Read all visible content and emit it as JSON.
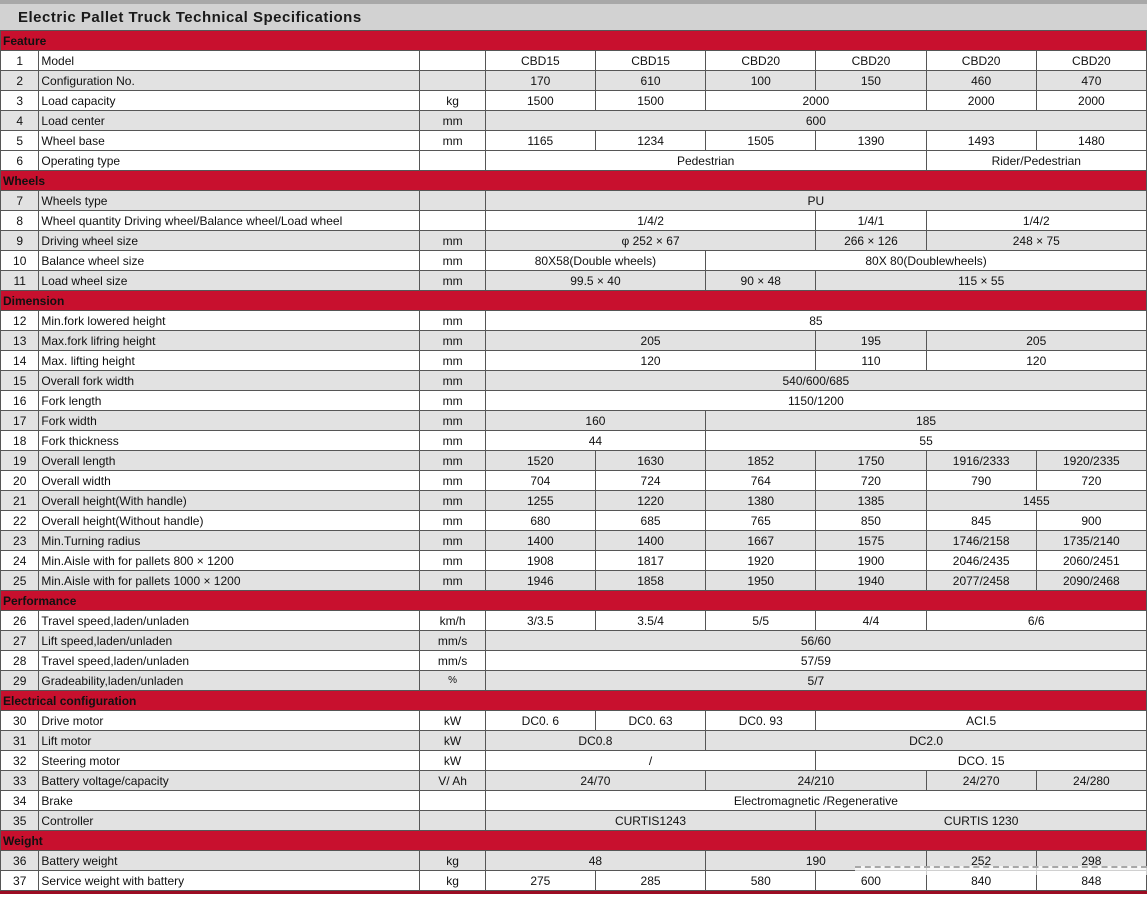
{
  "title": "Electric  Pallet Truck  Technical  Specifications",
  "colors": {
    "section_header_red": "#c8102e",
    "row_gray": "#e2e2e2",
    "row_white": "#ffffff",
    "title_bar_gray": "#d2d2d2",
    "grid_border": "#565656",
    "bottom_line_red": "#9c0c22"
  },
  "table": {
    "num_data_columns": 6,
    "sections": [
      {
        "header": "Feature",
        "rows": [
          {
            "num": "1",
            "label": "Model",
            "unit": "",
            "shade": "w",
            "cells": [
              {
                "t": "CBD15",
                "s": 1
              },
              {
                "t": "CBD15",
                "s": 1
              },
              {
                "t": "CBD20",
                "s": 1
              },
              {
                "t": "CBD20",
                "s": 1
              },
              {
                "t": "CBD20",
                "s": 1
              },
              {
                "t": "CBD20",
                "s": 1
              }
            ]
          },
          {
            "num": "2",
            "label": "Configuration No.",
            "unit": "",
            "shade": "g",
            "cells": [
              {
                "t": "170",
                "s": 1
              },
              {
                "t": "610",
                "s": 1
              },
              {
                "t": "100",
                "s": 1
              },
              {
                "t": "150",
                "s": 1
              },
              {
                "t": "460",
                "s": 1
              },
              {
                "t": "470",
                "s": 1
              }
            ]
          },
          {
            "num": "3",
            "label": "Load capacity",
            "unit": "kg",
            "shade": "w",
            "cells": [
              {
                "t": "1500",
                "s": 1
              },
              {
                "t": "1500",
                "s": 1
              },
              {
                "t": "2000",
                "s": 2
              },
              {
                "t": "2000",
                "s": 1
              },
              {
                "t": "2000",
                "s": 1
              }
            ]
          },
          {
            "num": "4",
            "label": "Load center",
            "unit": "mm",
            "shade": "g",
            "cells": [
              {
                "t": "600",
                "s": 6
              }
            ]
          },
          {
            "num": "5",
            "label": "Wheel base",
            "unit": "mm",
            "shade": "w",
            "cells": [
              {
                "t": "1165",
                "s": 1
              },
              {
                "t": "1234",
                "s": 1
              },
              {
                "t": "1505",
                "s": 1
              },
              {
                "t": "1390",
                "s": 1
              },
              {
                "t": "1493",
                "s": 1
              },
              {
                "t": "1480",
                "s": 1
              }
            ]
          },
          {
            "num": "6",
            "label": "Operating type",
            "unit": "",
            "shade": "w",
            "cells": [
              {
                "t": "Pedestrian",
                "s": 4
              },
              {
                "t": "Rider/Pedestrian",
                "s": 2
              }
            ]
          }
        ]
      },
      {
        "header": "Wheels",
        "rows": [
          {
            "num": "7",
            "label": "Wheels type",
            "unit": "",
            "shade": "g",
            "cells": [
              {
                "t": "PU",
                "s": 6
              }
            ]
          },
          {
            "num": "8",
            "label": "Wheel quantity Driving wheel/Balance wheel/Load wheel",
            "unit": "",
            "shade": "w",
            "cells": [
              {
                "t": "1/4/2",
                "s": 3
              },
              {
                "t": "1/4/1",
                "s": 1
              },
              {
                "t": "1/4/2",
                "s": 2
              }
            ]
          },
          {
            "num": "9",
            "label": "Driving wheel size",
            "unit": "mm",
            "shade": "g",
            "cells": [
              {
                "t": "φ 252 × 67",
                "s": 3
              },
              {
                "t": "266 × 126",
                "s": 1
              },
              {
                "t": "248 × 75",
                "s": 2
              }
            ]
          },
          {
            "num": "10",
            "label": "Balance wheel size",
            "unit": "mm",
            "shade": "w",
            "cells": [
              {
                "t": "80X58(Double wheels)",
                "s": 2
              },
              {
                "t": "80X 80(Doublewheels)",
                "s": 4
              }
            ]
          },
          {
            "num": "11",
            "label": "Load wheel size",
            "unit": "mm",
            "shade": "g",
            "cells": [
              {
                "t": "99.5 × 40",
                "s": 2
              },
              {
                "t": "90 × 48",
                "s": 1
              },
              {
                "t": "115 × 55",
                "s": 3
              }
            ]
          }
        ]
      },
      {
        "header": "Dimension",
        "rows": [
          {
            "num": "12",
            "label": "Min.fork lowered height",
            "unit": "mm",
            "shade": "w",
            "cells": [
              {
                "t": "85",
                "s": 6
              }
            ]
          },
          {
            "num": "13",
            "label": "Max.fork lifring  height",
            "unit": "mm",
            "shade": "g",
            "cells": [
              {
                "t": "205",
                "s": 3
              },
              {
                "t": "195",
                "s": 1
              },
              {
                "t": "205",
                "s": 2
              }
            ]
          },
          {
            "num": "14",
            "label": "Max. lifting  height",
            "unit": "mm",
            "shade": "w",
            "cells": [
              {
                "t": "120",
                "s": 3
              },
              {
                "t": "110",
                "s": 1
              },
              {
                "t": "120",
                "s": 2
              }
            ]
          },
          {
            "num": "15",
            "label": "Overall fork width",
            "unit": "mm",
            "shade": "g",
            "cells": [
              {
                "t": "540/600/685",
                "s": 6
              }
            ]
          },
          {
            "num": "16",
            "label": "Fork length",
            "unit": "mm",
            "shade": "w",
            "cells": [
              {
                "t": "1150/1200",
                "s": 6
              }
            ]
          },
          {
            "num": "17",
            "label": "Fork width",
            "unit": "mm",
            "shade": "g",
            "cells": [
              {
                "t": "160",
                "s": 2
              },
              {
                "t": "185",
                "s": 4
              }
            ]
          },
          {
            "num": "18",
            "label": "Fork thickness",
            "unit": "mm",
            "shade": "w",
            "cells": [
              {
                "t": "44",
                "s": 2
              },
              {
                "t": "55",
                "s": 4
              }
            ]
          },
          {
            "num": "19",
            "label": "Overall length",
            "unit": "mm",
            "shade": "g",
            "cells": [
              {
                "t": "1520",
                "s": 1
              },
              {
                "t": "1630",
                "s": 1
              },
              {
                "t": "1852",
                "s": 1
              },
              {
                "t": "1750",
                "s": 1
              },
              {
                "t": "1916/2333",
                "s": 1
              },
              {
                "t": "1920/2335",
                "s": 1
              }
            ]
          },
          {
            "num": "20",
            "label": "Overall width",
            "unit": "mm",
            "shade": "w",
            "cells": [
              {
                "t": "704",
                "s": 1
              },
              {
                "t": "724",
                "s": 1
              },
              {
                "t": "764",
                "s": 1
              },
              {
                "t": "720",
                "s": 1
              },
              {
                "t": "790",
                "s": 1
              },
              {
                "t": "720",
                "s": 1
              }
            ]
          },
          {
            "num": "21",
            "label": "Overall height(With handle)",
            "unit": "mm",
            "shade": "g",
            "cells": [
              {
                "t": "1255",
                "s": 1
              },
              {
                "t": "1220",
                "s": 1
              },
              {
                "t": "1380",
                "s": 1
              },
              {
                "t": "1385",
                "s": 1
              },
              {
                "t": "1455",
                "s": 2
              }
            ]
          },
          {
            "num": "22",
            "label": "Overall height(Without  handle)",
            "unit": "mm",
            "shade": "w",
            "cells": [
              {
                "t": "680",
                "s": 1
              },
              {
                "t": "685",
                "s": 1
              },
              {
                "t": "765",
                "s": 1
              },
              {
                "t": "850",
                "s": 1
              },
              {
                "t": "845",
                "s": 1
              },
              {
                "t": "900",
                "s": 1
              }
            ]
          },
          {
            "num": "23",
            "label": "Min.Turning radius",
            "unit": "mm",
            "shade": "g",
            "cells": [
              {
                "t": "1400",
                "s": 1
              },
              {
                "t": "1400",
                "s": 1
              },
              {
                "t": "1667",
                "s": 1
              },
              {
                "t": "1575",
                "s": 1
              },
              {
                "t": "1746/2158",
                "s": 1
              },
              {
                "t": "1735/2140",
                "s": 1
              }
            ]
          },
          {
            "num": "24",
            "label": "Min.Aisle with for pallets 800 × 1200",
            "unit": "mm",
            "shade": "w",
            "cells": [
              {
                "t": "1908",
                "s": 1
              },
              {
                "t": "1817",
                "s": 1
              },
              {
                "t": "1920",
                "s": 1
              },
              {
                "t": "1900",
                "s": 1
              },
              {
                "t": "2046/2435",
                "s": 1
              },
              {
                "t": "2060/2451",
                "s": 1
              }
            ]
          },
          {
            "num": "25",
            "label": "Min.Aisle with for pallets 1000 × 1200",
            "unit": "mm",
            "shade": "g",
            "cells": [
              {
                "t": "1946",
                "s": 1
              },
              {
                "t": "1858",
                "s": 1
              },
              {
                "t": "1950",
                "s": 1
              },
              {
                "t": "1940",
                "s": 1
              },
              {
                "t": "2077/2458",
                "s": 1
              },
              {
                "t": "2090/2468",
                "s": 1
              }
            ]
          }
        ]
      },
      {
        "header": "Performance",
        "rows": [
          {
            "num": "26",
            "label": "Travel speed,laden/unladen",
            "unit": "km/h",
            "shade": "w",
            "cells": [
              {
                "t": "3/3.5",
                "s": 1
              },
              {
                "t": "3.5/4",
                "s": 1
              },
              {
                "t": "5/5",
                "s": 1
              },
              {
                "t": "4/4",
                "s": 1
              },
              {
                "t": "6/6",
                "s": 2
              }
            ]
          },
          {
            "num": "27",
            "label": "Lift speed,laden/unladen",
            "unit": "mm/s",
            "shade": "g",
            "cells": [
              {
                "t": "56/60",
                "s": 6
              }
            ]
          },
          {
            "num": "28",
            "label": "Travel speed,laden/unladen",
            "unit": "mm/s",
            "shade": "w",
            "cells": [
              {
                "t": "57/59",
                "s": 6
              }
            ]
          },
          {
            "num": "29",
            "label": "Gradeability,laden/unladen",
            "unit": "%",
            "shade": "g",
            "cells": [
              {
                "t": "5/7",
                "s": 6
              }
            ]
          }
        ]
      },
      {
        "header": "Electrical configuration",
        "rows": [
          {
            "num": "30",
            "label": "Drive motor",
            "unit": "kW",
            "shade": "w",
            "cells": [
              {
                "t": "DC0. 6",
                "s": 1
              },
              {
                "t": "DC0. 63",
                "s": 1
              },
              {
                "t": "DC0. 93",
                "s": 1
              },
              {
                "t": "ACI.5",
                "s": 3
              }
            ]
          },
          {
            "num": "31",
            "label": "Lift motor",
            "unit": "kW",
            "shade": "g",
            "cells": [
              {
                "t": "DC0.8",
                "s": 2
              },
              {
                "t": "DC2.0",
                "s": 4
              }
            ]
          },
          {
            "num": "32",
            "label": "Steering motor",
            "unit": "kW",
            "shade": "w",
            "cells": [
              {
                "t": "/",
                "s": 3
              },
              {
                "t": "DCO. 15",
                "s": 3
              }
            ]
          },
          {
            "num": "33",
            "label": "Battery voltage/capacity",
            "unit": "V/ Ah",
            "shade": "g",
            "cells": [
              {
                "t": "24/70",
                "s": 2
              },
              {
                "t": "24/210",
                "s": 2
              },
              {
                "t": "24/270",
                "s": 1
              },
              {
                "t": "24/280",
                "s": 1
              }
            ]
          },
          {
            "num": "34",
            "label": "Brake",
            "unit": "",
            "shade": "w",
            "cells": [
              {
                "t": "Electromagnetic /Regenerative",
                "s": 6
              }
            ]
          },
          {
            "num": "35",
            "label": "Controller",
            "unit": "",
            "shade": "g",
            "cells": [
              {
                "t": "CURTIS1243",
                "s": 3
              },
              {
                "t": "CURTIS 1230",
                "s": 3
              }
            ]
          }
        ]
      },
      {
        "header": "Weight",
        "rows": [
          {
            "num": "36",
            "label": "Battery weight",
            "unit": "kg",
            "shade": "g",
            "cells": [
              {
                "t": "48",
                "s": 2
              },
              {
                "t": "190",
                "s": 2
              },
              {
                "t": "252",
                "s": 1
              },
              {
                "t": "298",
                "s": 1
              }
            ]
          },
          {
            "num": "37",
            "label": "Service weight with battery",
            "unit": "kg",
            "shade": "w",
            "cells": [
              {
                "t": "275",
                "s": 1
              },
              {
                "t": "285",
                "s": 1
              },
              {
                "t": "580",
                "s": 1
              },
              {
                "t": "600",
                "s": 1
              },
              {
                "t": "840",
                "s": 1
              },
              {
                "t": "848",
                "s": 1
              }
            ]
          }
        ]
      }
    ]
  }
}
